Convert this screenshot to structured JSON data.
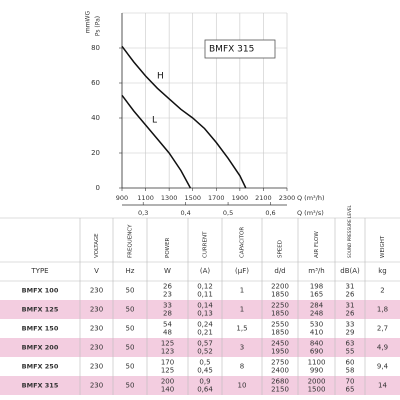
{
  "chart_data": {
    "type": "line",
    "y_labels": [
      "mmWG",
      "Ps (Pa)"
    ],
    "x_label": "Q (m³/h)",
    "x2_label": "Q (m³/s)",
    "xlim": [
      900,
      2300
    ],
    "xticks": [
      900,
      1100,
      1300,
      1500,
      1700,
      1900,
      2100,
      2300
    ],
    "x2lim": [
      0.25,
      0.6389
    ],
    "x2ticks": [
      {
        "value": 0.3,
        "label": "0,3"
      },
      {
        "value": 0.4,
        "label": "0,4"
      },
      {
        "value": 0.5,
        "label": "0,5"
      },
      {
        "value": 0.6,
        "label": "0,6"
      }
    ],
    "ylim": [
      0,
      100
    ],
    "yticks": [
      0,
      20,
      40,
      60,
      80
    ],
    "grid": true,
    "box_label": "BMFX 315",
    "series": [
      {
        "name": "H",
        "color": "#111111",
        "x": [
          900,
          1000,
          1100,
          1200,
          1300,
          1400,
          1500,
          1600,
          1700,
          1800,
          1900,
          1950
        ],
        "values": [
          81,
          72,
          64,
          57,
          51,
          45,
          40,
          34,
          26,
          17,
          7,
          0
        ]
      },
      {
        "name": "L",
        "color": "#111111",
        "x": [
          900,
          1000,
          1100,
          1200,
          1300,
          1400,
          1480
        ],
        "values": [
          53,
          44,
          36,
          28,
          20,
          10,
          0
        ]
      }
    ]
  },
  "table": {
    "headers": [
      "",
      "VOLTAGE",
      "FREQUENCY",
      "POWER",
      "CURRENT",
      "CAPACITOR",
      "SPEED",
      "AIR FLOW",
      "SOUND PRESSURE LEVEL",
      "WEIGHT"
    ],
    "units": [
      "TYPE",
      "V",
      "Hz",
      "W",
      "(A)",
      "(µF)",
      "d/d",
      "m³/h",
      "dB(A)",
      "kg"
    ],
    "rows": [
      [
        "BMFX 100",
        "230",
        "50",
        [
          "26",
          "23"
        ],
        [
          "0,12",
          "0,11"
        ],
        "1",
        [
          "2200",
          "1850"
        ],
        [
          "198",
          "165"
        ],
        [
          "31",
          "26"
        ],
        "2"
      ],
      [
        "BMFX 125",
        "230",
        "50",
        [
          "33",
          "28"
        ],
        [
          "0,14",
          "0,13"
        ],
        "1",
        [
          "2250",
          "1850"
        ],
        [
          "284",
          "248"
        ],
        [
          "31",
          "26"
        ],
        "1,8"
      ],
      [
        "BMFX 150",
        "230",
        "50",
        [
          "54",
          "48"
        ],
        [
          "0,24",
          "0,21"
        ],
        "1,5",
        [
          "2550",
          "1850"
        ],
        [
          "530",
          "410"
        ],
        [
          "33",
          "29"
        ],
        "2,7"
      ],
      [
        "BMFX 200",
        "230",
        "50",
        [
          "125",
          "123"
        ],
        [
          "0,57",
          "0,52"
        ],
        "3",
        [
          "2450",
          "1950"
        ],
        [
          "840",
          "690"
        ],
        [
          "63",
          "55"
        ],
        "4,9"
      ],
      [
        "BMFX 250",
        "230",
        "50",
        [
          "170",
          "125"
        ],
        [
          "0,5",
          "0,45"
        ],
        "8",
        [
          "2750",
          "2400"
        ],
        [
          "1100",
          "990"
        ],
        [
          "60",
          "58"
        ],
        "9,4"
      ],
      [
        "BMFX 315",
        "230",
        "50",
        [
          "200",
          "140"
        ],
        [
          "0,9",
          "0,64"
        ],
        "10",
        [
          "2680",
          "2150"
        ],
        [
          "2000",
          "1500"
        ],
        [
          "70",
          "65"
        ],
        "14"
      ]
    ]
  }
}
